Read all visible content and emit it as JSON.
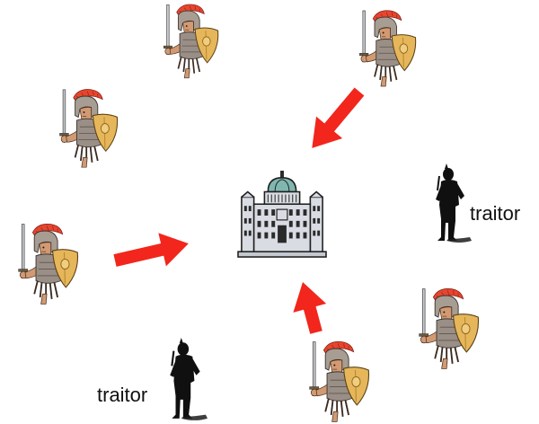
{
  "labels": {
    "traitor_right": "traitor",
    "traitor_bottom": "traitor"
  },
  "nodes": {
    "center": "capitol-building",
    "generals": [
      "general-top-center",
      "general-top-right",
      "general-upper-left",
      "general-left",
      "general-right",
      "general-bottom-center"
    ],
    "traitors": [
      "traitor-right",
      "traitor-bottom-left"
    ]
  },
  "arrows": [
    {
      "from": "general-top-right",
      "to": "capitol-building"
    },
    {
      "from": "general-left",
      "to": "capitol-building"
    },
    {
      "from": "general-bottom-center",
      "to": "capitol-building"
    }
  ],
  "colors": {
    "arrow": "#f2261c",
    "crest": "#e8452e",
    "shield": "#e6b65a",
    "armor": "#9a8f86",
    "skin": "#d19a73",
    "traitor": "#101010",
    "dome": "#7fb7b0",
    "building": "#d9dde3"
  }
}
